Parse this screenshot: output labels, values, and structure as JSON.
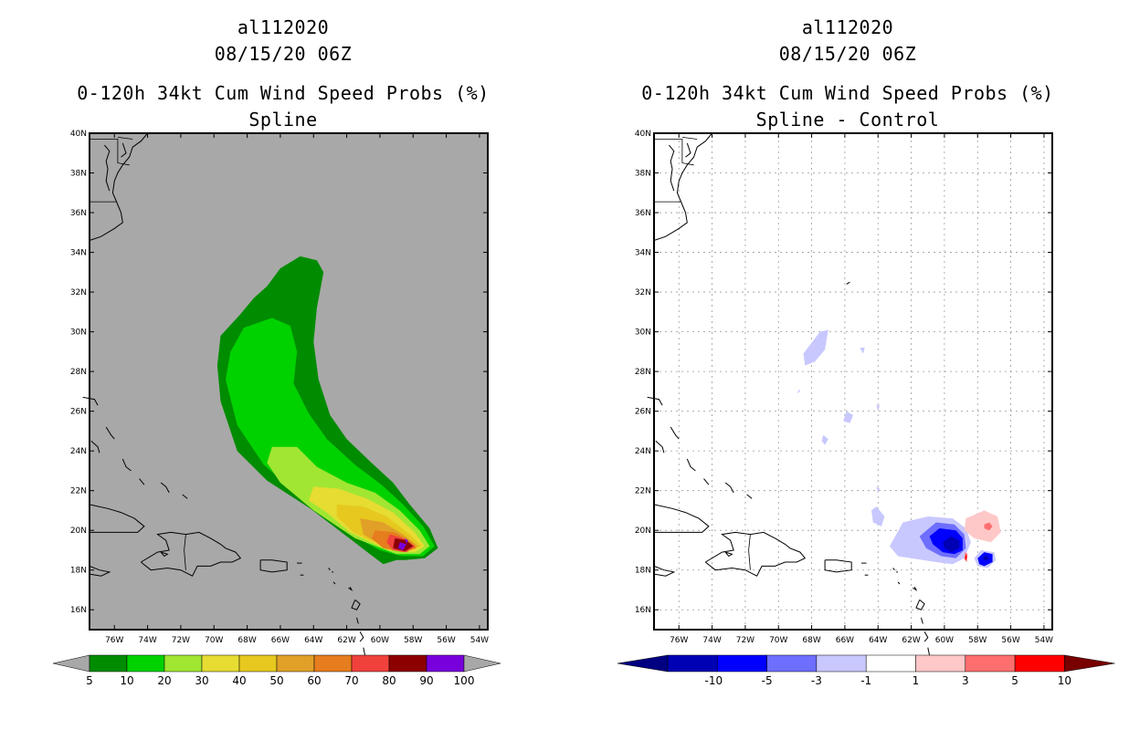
{
  "panels": [
    {
      "id": "left",
      "storm_id": "al112020",
      "datetime": "08/15/20 06Z",
      "product": "0-120h 34kt Cum Wind Speed Probs (%)",
      "subtitle": "Spline",
      "colorbar_labels": [
        "5",
        "10",
        "20",
        "30",
        "40",
        "50",
        "60",
        "70",
        "80",
        "90",
        "100"
      ],
      "colorbar_colors": [
        "#008c00",
        "#00d200",
        "#a0e632",
        "#e6dc32",
        "#e6c81e",
        "#e1a028",
        "#e67d1e",
        "#f0413c",
        "#8c0000",
        "#7800dc"
      ],
      "background_color": "#a8a8a8"
    },
    {
      "id": "right",
      "storm_id": "al112020",
      "datetime": "08/15/20 06Z",
      "product": "0-120h 34kt Cum Wind Speed Probs (%)",
      "subtitle": "Spline - Control",
      "colorbar_labels": [
        "-10",
        "-5",
        "-3",
        "-1",
        "1",
        "3",
        "5",
        "10"
      ],
      "colorbar_colors": [
        "#0000b4",
        "#0000ff",
        "#6e6eff",
        "#c8c8ff",
        "#ffffff",
        "#ffc8c8",
        "#ff6e6e",
        "#ff0000"
      ],
      "colorbar_end_colors": [
        "#000080",
        "#780000"
      ],
      "background_color": "#ffffff"
    }
  ],
  "axes": {
    "lat_labels": [
      "40N",
      "38N",
      "36N",
      "34N",
      "32N",
      "30N",
      "28N",
      "26N",
      "24N",
      "22N",
      "20N",
      "18N",
      "16N"
    ],
    "lon_labels": [
      "76W",
      "74W",
      "72W",
      "70W",
      "68W",
      "66W",
      "64W",
      "62W",
      "60W",
      "58W",
      "56W",
      "54W"
    ],
    "lat_range": [
      15,
      40
    ],
    "lon_range": [
      -77.5,
      -53.5
    ]
  }
}
